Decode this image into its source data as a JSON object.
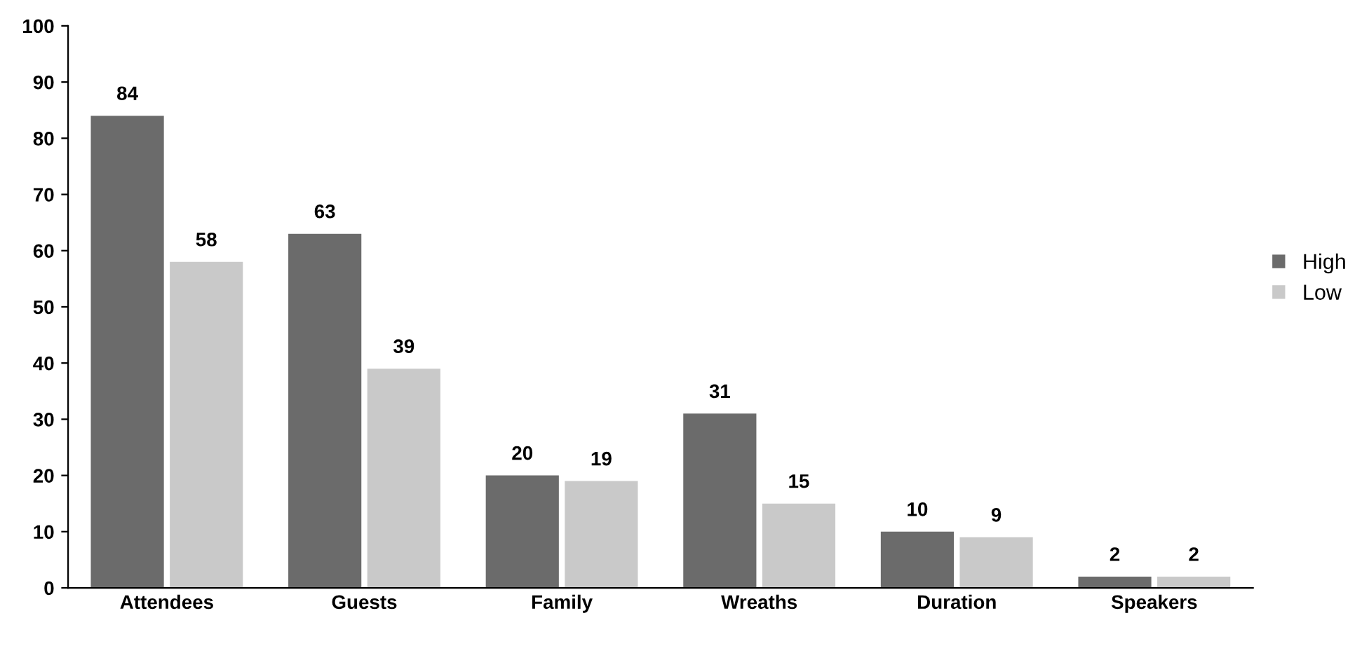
{
  "chart_data": {
    "type": "bar",
    "categories": [
      "Attendees",
      "Guests",
      "Family",
      "Wreaths",
      "Duration",
      "Speakers"
    ],
    "series": [
      {
        "name": "High",
        "color": "#6b6b6b",
        "values": [
          84,
          63,
          20,
          31,
          10,
          2
        ]
      },
      {
        "name": "Low",
        "color": "#c9c9c9",
        "values": [
          58,
          39,
          19,
          15,
          9,
          2
        ]
      }
    ],
    "ylim": [
      0,
      100
    ],
    "yticks": [
      0,
      10,
      20,
      30,
      40,
      50,
      60,
      70,
      80,
      90,
      100
    ],
    "grid": false,
    "legend": "right",
    "data_labels": true
  }
}
